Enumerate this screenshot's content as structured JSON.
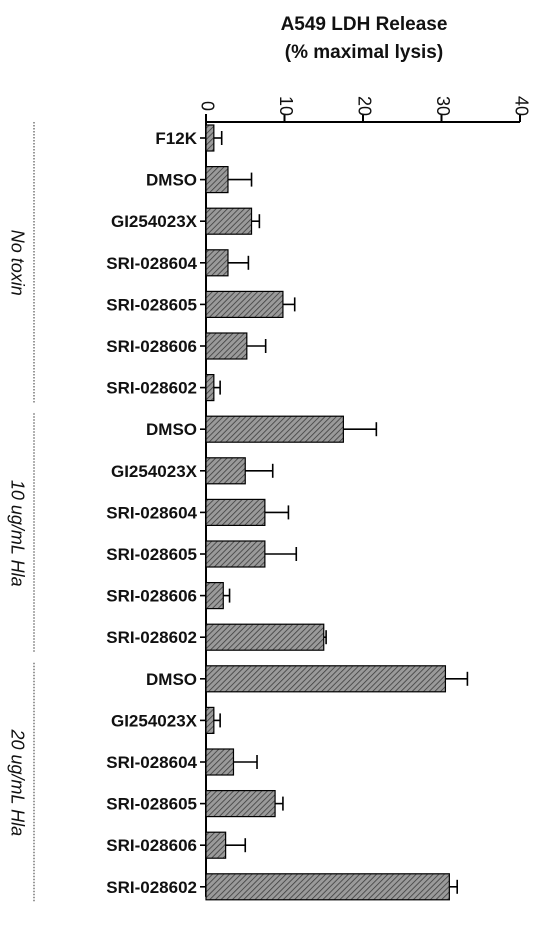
{
  "chart_data": {
    "type": "bar",
    "orientation": "horizontal",
    "title": "A549 LDH Release",
    "subtitle": "(% maximal lysis)",
    "xlim": [
      0,
      40
    ],
    "xticks": [
      "0",
      "10",
      "20",
      "30",
      "40"
    ],
    "tick_label_rotation": "rotated 90°",
    "groups": [
      {
        "label": "No toxin",
        "categories": [
          "F12K",
          "DMSO",
          "GI254023X",
          "SRI-028604",
          "SRI-028605",
          "SRI-028606",
          "SRI-028602"
        ],
        "values": [
          1.0,
          2.8,
          5.8,
          2.8,
          9.8,
          5.2,
          1.0
        ],
        "errors": [
          1.0,
          3.0,
          1.0,
          2.6,
          1.5,
          2.4,
          0.8
        ]
      },
      {
        "label": "10 ug/mL Hla",
        "categories": [
          "DMSO",
          "GI254023X",
          "SRI-028604",
          "SRI-028605",
          "SRI-028606"
        ],
        "values": [
          17.5,
          5.0,
          7.5,
          7.5,
          2.2
        ],
        "errors": [
          4.2,
          3.5,
          3.0,
          4.0,
          0.8
        ]
      },
      {
        "label": "",
        "categories": [
          "SRI-028602"
        ],
        "values": [
          15.0
        ],
        "errors": [
          0.3
        ]
      },
      {
        "label": "20 ug/mL Hla",
        "categories": [
          "DMSO",
          "GI254023X",
          "SRI-028604",
          "SRI-028605",
          "SRI-028606",
          "SRI-028602"
        ],
        "values": [
          30.5,
          1.0,
          3.5,
          8.8,
          2.5,
          31.0
        ],
        "errors": [
          2.8,
          0.8,
          3.0,
          1.0,
          2.5,
          1.0
        ]
      }
    ],
    "bar_fill": "#8c8c8c",
    "bar_stroke": "#000000",
    "grid": false,
    "legend": "none"
  }
}
